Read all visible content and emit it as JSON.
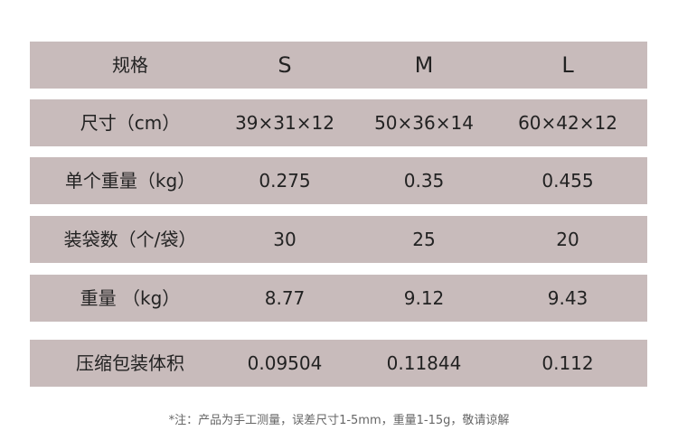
{
  "table": {
    "header": [
      "规格",
      "S",
      "M",
      "L"
    ],
    "rows": [
      [
        "尺寸（cm）",
        "39×31×12",
        "50×36×14",
        "60×42×12"
      ],
      [
        "单个重量（kg）",
        "0.275",
        "0.35",
        "0.455"
      ],
      [
        "装袋数（个/袋）",
        "30",
        "25",
        "20"
      ],
      [
        "重量 （kg）",
        "8.77",
        "9.12",
        "9.43"
      ],
      [
        "压缩包装体积",
        "0.09504",
        "0.11844",
        "0.112"
      ]
    ]
  },
  "note": "*注：产品为手工测量，误差尺寸1-5mm，重量1-15g，敬请谅解"
}
